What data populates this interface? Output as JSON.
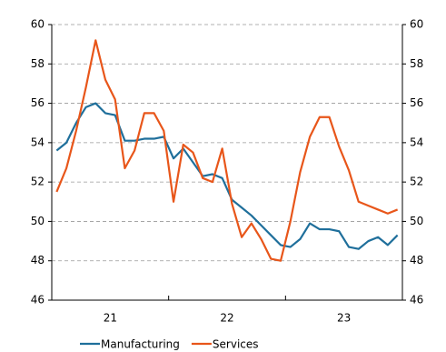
{
  "chart_data": {
    "type": "line",
    "x": [
      1,
      2,
      3,
      4,
      5,
      6,
      7,
      8,
      9,
      10,
      11,
      12,
      13,
      14,
      15,
      16,
      17,
      18,
      19,
      20,
      21,
      22,
      23,
      24,
      25,
      26,
      27,
      28,
      29,
      30,
      31,
      32,
      33,
      34,
      35,
      36
    ],
    "xlim": [
      0.5,
      36.5
    ],
    "xticks": [
      {
        "value": 6.5,
        "label": "21"
      },
      {
        "value": 18.5,
        "label": "22"
      },
      {
        "value": 30.5,
        "label": "23"
      }
    ],
    "x_tick_marks": [
      12.5,
      24.5
    ],
    "ylim": [
      46,
      60
    ],
    "yticks": [
      46,
      48,
      50,
      52,
      54,
      56,
      58,
      60
    ],
    "y2lim": [
      46,
      60
    ],
    "y2ticks": [
      46,
      48,
      50,
      52,
      54,
      56,
      58,
      60
    ],
    "grid": true,
    "legend": "bottom",
    "series": [
      {
        "name": "Manufacturing",
        "color": "#1f6f9b",
        "values": [
          53.6,
          54.0,
          55.0,
          55.8,
          56.0,
          55.5,
          55.4,
          54.1,
          54.1,
          54.2,
          54.2,
          54.3,
          53.2,
          53.7,
          53.0,
          52.3,
          52.4,
          52.2,
          51.1,
          50.7,
          50.3,
          49.8,
          49.3,
          48.8,
          48.7,
          49.1,
          49.9,
          49.6,
          49.6,
          49.5,
          48.7,
          48.6,
          49.0,
          49.2,
          48.8,
          49.3
        ]
      },
      {
        "name": "Services",
        "color": "#e8561a",
        "values": [
          51.5,
          52.7,
          54.6,
          56.8,
          59.2,
          57.2,
          56.2,
          52.7,
          53.6,
          55.5,
          55.5,
          54.6,
          51.0,
          53.9,
          53.5,
          52.2,
          52.0,
          53.7,
          50.9,
          49.2,
          49.9,
          49.1,
          48.1,
          48.0,
          50.0,
          52.5,
          54.3,
          55.3,
          55.3,
          53.8,
          52.6,
          51.0,
          50.8,
          50.6,
          50.4,
          50.6
        ]
      }
    ]
  }
}
